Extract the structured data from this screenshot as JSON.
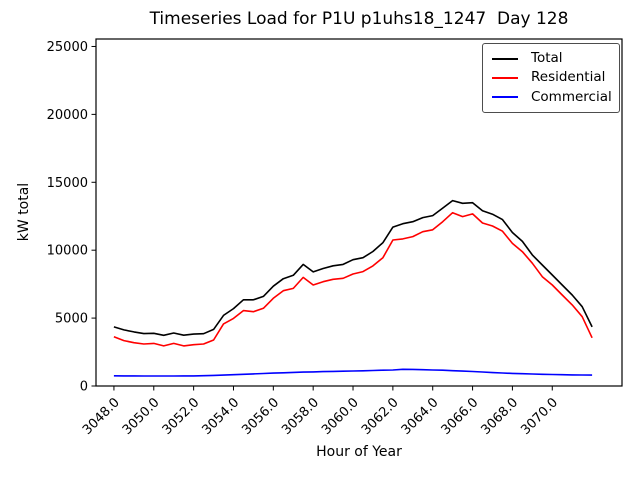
{
  "chart_data": {
    "type": "line",
    "title": "Timeseries Load for P1U p1uhs18_1247  Day 128",
    "xlabel": "Hour of Year",
    "ylabel": "kW total",
    "grid": false,
    "legend_position": "upper right",
    "xlim": [
      3047.1,
      3073.5
    ],
    "ylim": [
      0,
      25550
    ],
    "xticks": [
      3048,
      3050,
      3052,
      3054,
      3056,
      3058,
      3060,
      3062,
      3064,
      3066,
      3068,
      3070
    ],
    "xtick_labels": [
      "3048.0",
      "3050.0",
      "3052.0",
      "3054.0",
      "3056.0",
      "3058.0",
      "3060.0",
      "3062.0",
      "3064.0",
      "3066.0",
      "3068.0",
      "3070.0"
    ],
    "yticks": [
      0,
      5000,
      10000,
      15000,
      20000,
      25000
    ],
    "ytick_labels": [
      "0",
      "5000",
      "10000",
      "15000",
      "20000",
      "25000"
    ],
    "x": [
      3048.0,
      3048.5,
      3049.0,
      3049.5,
      3050.0,
      3050.5,
      3051.0,
      3051.5,
      3052.0,
      3052.5,
      3053.0,
      3053.5,
      3054.0,
      3054.5,
      3055.0,
      3055.5,
      3056.0,
      3056.5,
      3057.0,
      3057.5,
      3058.0,
      3058.5,
      3059.0,
      3059.5,
      3060.0,
      3060.5,
      3061.0,
      3061.5,
      3062.0,
      3062.5,
      3063.0,
      3063.5,
      3064.0,
      3064.5,
      3065.0,
      3065.5,
      3066.0,
      3066.5,
      3067.0,
      3067.5,
      3068.0,
      3068.5,
      3069.0,
      3069.5,
      3070.0,
      3070.5,
      3071.0,
      3071.5,
      3072.0
    ],
    "series": [
      {
        "name": "Total",
        "color": "#000000",
        "values": [
          4350,
          4130,
          3980,
          3860,
          3880,
          3730,
          3900,
          3740,
          3820,
          3850,
          4170,
          5200,
          5700,
          6350,
          6350,
          6600,
          7350,
          7900,
          8150,
          8950,
          8400,
          8650,
          8850,
          8950,
          9300,
          9450,
          9900,
          10550,
          11700,
          11950,
          12100,
          12400,
          12550,
          13100,
          13650,
          13450,
          13500,
          12900,
          12650,
          12250,
          11300,
          10650,
          9650,
          8910,
          8170,
          7440,
          6700,
          5840,
          4350
        ]
      },
      {
        "name": "Residential",
        "color": "#ff0000",
        "values": [
          3630,
          3340,
          3190,
          3090,
          3140,
          2950,
          3140,
          2950,
          3040,
          3090,
          3390,
          4570,
          4980,
          5550,
          5470,
          5720,
          6460,
          7020,
          7190,
          8000,
          7440,
          7680,
          7860,
          7930,
          8250,
          8420,
          8840,
          9450,
          10750,
          10830,
          11000,
          11360,
          11500,
          12100,
          12760,
          12470,
          12670,
          12000,
          11780,
          11400,
          10500,
          9890,
          9040,
          8050,
          7440,
          6700,
          5970,
          5100,
          3550
        ]
      },
      {
        "name": "Commercial",
        "color": "#0000ff",
        "values": [
          750,
          745,
          740,
          738,
          737,
          737,
          738,
          740,
          745,
          760,
          780,
          800,
          830,
          860,
          890,
          920,
          950,
          975,
          1000,
          1020,
          1040,
          1060,
          1075,
          1090,
          1105,
          1120,
          1140,
          1160,
          1180,
          1230,
          1220,
          1200,
          1180,
          1160,
          1130,
          1100,
          1070,
          1030,
          990,
          960,
          930,
          905,
          885,
          865,
          845,
          830,
          820,
          810,
          800
        ]
      }
    ]
  }
}
